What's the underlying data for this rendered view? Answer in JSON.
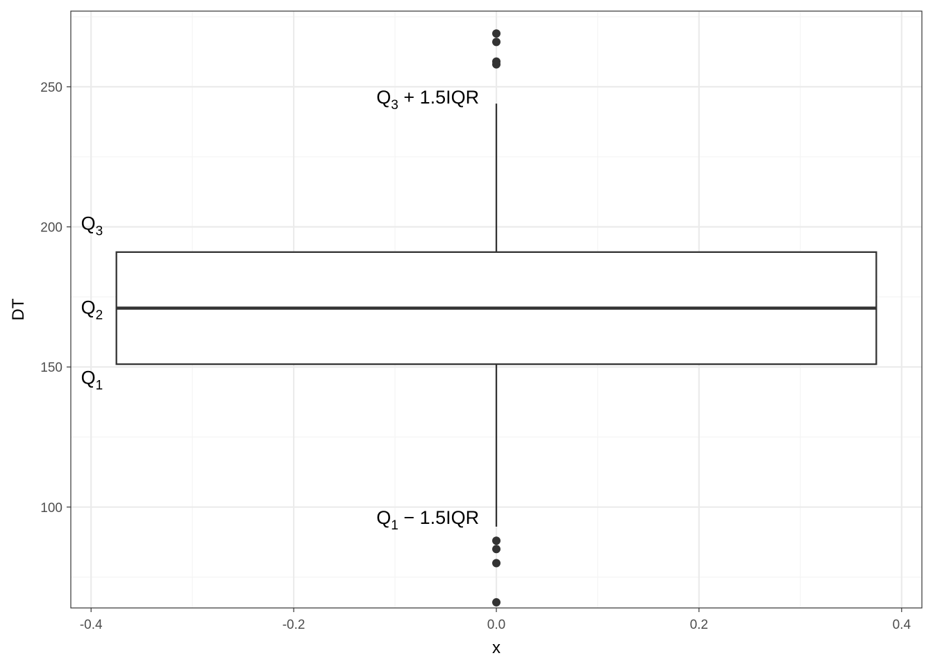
{
  "chart_data": {
    "type": "boxplot",
    "xlabel": "x",
    "ylabel": "DT",
    "xlim": [
      -0.42,
      0.42
    ],
    "ylim": [
      64,
      277
    ],
    "x_ticks": [
      -0.4,
      -0.2,
      0.0,
      0.2,
      0.4
    ],
    "x_tick_labels": [
      "-0.4",
      "-0.2",
      "0.0",
      "0.2",
      "0.4"
    ],
    "y_ticks": [
      100,
      150,
      200,
      250
    ],
    "y_tick_labels": [
      "100",
      "150",
      "200",
      "250"
    ],
    "grid": true,
    "box": {
      "x": 0.0,
      "x_range": [
        -0.375,
        0.375
      ],
      "q1": 151,
      "median": 171,
      "q3": 191,
      "whisker_low": 93,
      "whisker_high": 244,
      "outliers": [
        269,
        266,
        259,
        258,
        88,
        85,
        80,
        66
      ]
    },
    "annotations": [
      {
        "id": "q3",
        "text": "Q",
        "sub": "3",
        "suffix": "",
        "x": -0.41,
        "y": 199,
        "anchor": "start"
      },
      {
        "id": "q2",
        "text": "Q",
        "sub": "2",
        "suffix": "",
        "x": -0.41,
        "y": 169,
        "anchor": "start"
      },
      {
        "id": "q1",
        "text": "Q",
        "sub": "1",
        "suffix": "",
        "x": -0.41,
        "y": 144,
        "anchor": "start"
      },
      {
        "id": "upper-fence",
        "text": "Q",
        "sub": "3",
        "suffix": " + 1.5IQR",
        "x": -0.017,
        "y": 244,
        "anchor": "end"
      },
      {
        "id": "lower-fence",
        "text": "Q",
        "sub": "1",
        "suffix": " − 1.5IQR",
        "x": -0.017,
        "y": 94,
        "anchor": "end"
      }
    ],
    "colors": {
      "panel_border": "#333333",
      "grid_major": "#ebebeb",
      "grid_minor": "#f4f4f4",
      "box_line": "#333333",
      "point": "#333333"
    }
  }
}
